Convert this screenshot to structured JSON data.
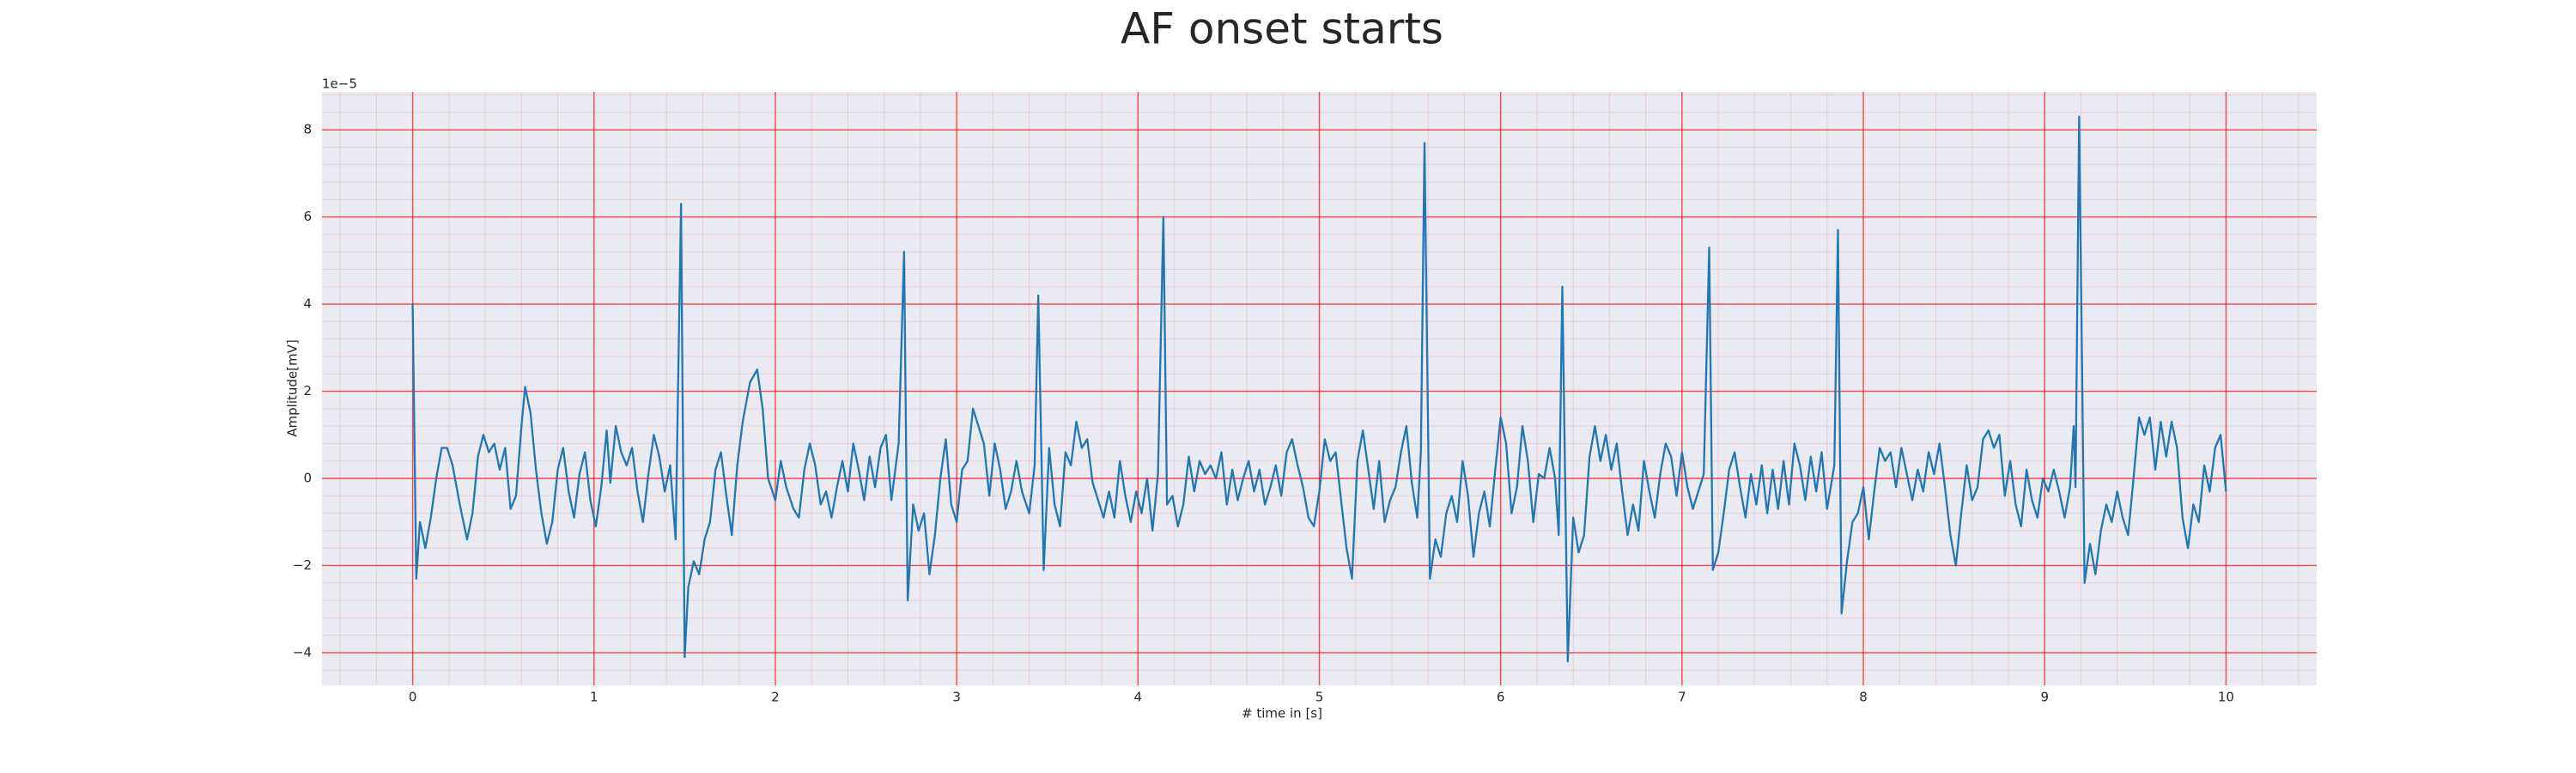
{
  "chart_data": {
    "type": "line",
    "title": "AF onset starts",
    "x_label": "# time in [s]",
    "y_label": "Amplitude[mV]",
    "y_offset_label": "1e−5",
    "color": "#1f77b4",
    "background": "#eaeaf2",
    "grid": true,
    "grid_color": "#ff0000",
    "xlim": [
      -0.5,
      10.5
    ],
    "ylim": [
      -4.75,
      8.87
    ],
    "xticks": [
      0,
      1,
      2,
      3,
      4,
      5,
      6,
      7,
      8,
      9,
      10
    ],
    "yticks": [
      {
        "value": -4,
        "label": "−4"
      },
      {
        "value": -2,
        "label": "−2"
      },
      0,
      2,
      4,
      6,
      8
    ],
    "x": [
      0.0,
      0.02,
      0.04,
      0.07,
      0.1,
      0.13,
      0.16,
      0.19,
      0.22,
      0.26,
      0.3,
      0.33,
      0.36,
      0.39,
      0.42,
      0.45,
      0.48,
      0.51,
      0.54,
      0.57,
      0.6,
      0.62,
      0.65,
      0.68,
      0.71,
      0.74,
      0.77,
      0.8,
      0.83,
      0.86,
      0.89,
      0.92,
      0.95,
      0.98,
      1.01,
      1.04,
      1.07,
      1.09,
      1.12,
      1.15,
      1.18,
      1.21,
      1.24,
      1.27,
      1.3,
      1.33,
      1.36,
      1.39,
      1.42,
      1.45,
      1.48,
      1.5,
      1.52,
      1.55,
      1.58,
      1.61,
      1.64,
      1.67,
      1.7,
      1.73,
      1.76,
      1.79,
      1.82,
      1.86,
      1.9,
      1.93,
      1.96,
      2.0,
      2.03,
      2.06,
      2.1,
      2.13,
      2.16,
      2.19,
      2.22,
      2.25,
      2.28,
      2.31,
      2.34,
      2.37,
      2.4,
      2.43,
      2.46,
      2.49,
      2.52,
      2.55,
      2.58,
      2.61,
      2.64,
      2.68,
      2.71,
      2.73,
      2.76,
      2.79,
      2.82,
      2.85,
      2.88,
      2.91,
      2.94,
      2.97,
      3.0,
      3.03,
      3.06,
      3.09,
      3.12,
      3.15,
      3.18,
      3.21,
      3.24,
      3.27,
      3.3,
      3.33,
      3.36,
      3.4,
      3.43,
      3.45,
      3.48,
      3.51,
      3.54,
      3.57,
      3.6,
      3.63,
      3.66,
      3.69,
      3.72,
      3.75,
      3.78,
      3.81,
      3.84,
      3.87,
      3.9,
      3.93,
      3.96,
      3.99,
      4.02,
      4.05,
      4.08,
      4.11,
      4.14,
      4.16,
      4.19,
      4.22,
      4.25,
      4.28,
      4.31,
      4.34,
      4.37,
      4.4,
      4.43,
      4.46,
      4.49,
      4.52,
      4.55,
      4.58,
      4.61,
      4.64,
      4.67,
      4.7,
      4.73,
      4.76,
      4.79,
      4.82,
      4.85,
      4.88,
      4.91,
      4.94,
      4.97,
      5.0,
      5.03,
      5.06,
      5.09,
      5.12,
      5.15,
      5.18,
      5.21,
      5.24,
      5.27,
      5.3,
      5.33,
      5.36,
      5.39,
      5.42,
      5.45,
      5.48,
      5.51,
      5.54,
      5.56,
      5.58,
      5.61,
      5.64,
      5.67,
      5.7,
      5.73,
      5.76,
      5.79,
      5.82,
      5.85,
      5.88,
      5.91,
      5.94,
      5.97,
      6.0,
      6.03,
      6.06,
      6.09,
      6.12,
      6.15,
      6.18,
      6.21,
      6.24,
      6.27,
      6.3,
      6.32,
      6.34,
      6.37,
      6.4,
      6.43,
      6.46,
      6.49,
      6.52,
      6.55,
      6.58,
      6.61,
      6.64,
      6.67,
      6.7,
      6.73,
      6.76,
      6.79,
      6.82,
      6.85,
      6.88,
      6.91,
      6.94,
      6.97,
      7.0,
      7.03,
      7.06,
      7.09,
      7.12,
      7.15,
      7.17,
      7.2,
      7.23,
      7.26,
      7.29,
      7.32,
      7.35,
      7.38,
      7.41,
      7.44,
      7.47,
      7.5,
      7.53,
      7.56,
      7.59,
      7.62,
      7.65,
      7.68,
      7.71,
      7.74,
      7.77,
      7.8,
      7.84,
      7.86,
      7.88,
      7.91,
      7.94,
      7.97,
      8.0,
      8.03,
      8.06,
      8.09,
      8.12,
      8.15,
      8.18,
      8.21,
      8.24,
      8.27,
      8.3,
      8.33,
      8.36,
      8.39,
      8.42,
      8.45,
      8.48,
      8.51,
      8.54,
      8.57,
      8.6,
      8.63,
      8.66,
      8.69,
      8.72,
      8.75,
      8.78,
      8.81,
      8.84,
      8.87,
      8.9,
      8.93,
      8.96,
      8.99,
      9.02,
      9.05,
      9.08,
      9.11,
      9.14,
      9.16,
      9.17,
      9.19,
      9.22,
      9.25,
      9.28,
      9.31,
      9.34,
      9.37,
      9.4,
      9.43,
      9.46,
      9.49,
      9.52,
      9.55,
      9.58,
      9.61,
      9.64,
      9.67,
      9.7,
      9.73,
      9.76,
      9.79,
      9.82,
      9.85,
      9.88,
      9.91,
      9.94,
      9.97,
      10.0
    ],
    "values": [
      4.0,
      -2.3,
      -1.0,
      -1.6,
      -0.9,
      0.0,
      0.7,
      0.7,
      0.3,
      -0.6,
      -1.4,
      -0.8,
      0.5,
      1.0,
      0.6,
      0.8,
      0.2,
      0.7,
      -0.7,
      -0.4,
      1.2,
      2.1,
      1.5,
      0.2,
      -0.8,
      -1.5,
      -1.0,
      0.2,
      0.7,
      -0.3,
      -0.9,
      0.1,
      0.6,
      -0.5,
      -1.1,
      -0.2,
      1.1,
      -0.1,
      1.2,
      0.6,
      0.3,
      0.7,
      -0.3,
      -1.0,
      0.1,
      1.0,
      0.5,
      -0.3,
      0.3,
      -1.4,
      6.3,
      -4.1,
      -2.5,
      -1.9,
      -2.2,
      -1.4,
      -1.0,
      0.2,
      0.6,
      -0.4,
      -1.3,
      0.3,
      1.3,
      2.2,
      2.5,
      1.6,
      0.0,
      -0.5,
      0.4,
      -0.2,
      -0.7,
      -0.9,
      0.2,
      0.8,
      0.3,
      -0.6,
      -0.3,
      -0.9,
      -0.2,
      0.4,
      -0.3,
      0.8,
      0.2,
      -0.5,
      0.5,
      -0.2,
      0.7,
      1.0,
      -0.5,
      0.8,
      5.2,
      -2.8,
      -0.6,
      -1.2,
      -0.8,
      -2.2,
      -1.3,
      0.0,
      0.9,
      -0.6,
      -1.0,
      0.2,
      0.4,
      1.6,
      1.2,
      0.8,
      -0.4,
      0.8,
      0.2,
      -0.7,
      -0.3,
      0.4,
      -0.3,
      -0.8,
      0.3,
      4.2,
      -2.1,
      0.7,
      -0.6,
      -1.1,
      0.6,
      0.3,
      1.3,
      0.7,
      0.9,
      -0.1,
      -0.5,
      -0.9,
      -0.3,
      -0.9,
      0.4,
      -0.4,
      -1.0,
      -0.3,
      -0.8,
      0.0,
      -1.2,
      0.1,
      6.0,
      -0.6,
      -0.4,
      -1.1,
      -0.6,
      0.5,
      -0.3,
      0.4,
      0.1,
      0.3,
      0.0,
      0.6,
      -0.6,
      0.2,
      -0.5,
      0.0,
      0.4,
      -0.3,
      0.2,
      -0.6,
      -0.2,
      0.3,
      -0.4,
      0.6,
      0.9,
      0.3,
      -0.2,
      -0.9,
      -1.1,
      -0.3,
      0.9,
      0.4,
      0.6,
      -0.5,
      -1.6,
      -2.3,
      0.4,
      1.1,
      0.2,
      -0.7,
      0.4,
      -1.0,
      -0.5,
      -0.2,
      0.6,
      1.2,
      -0.1,
      -0.9,
      0.6,
      7.7,
      -2.3,
      -1.4,
      -1.8,
      -0.8,
      -0.4,
      -1.0,
      0.4,
      -0.4,
      -1.8,
      -0.8,
      -0.3,
      -1.1,
      0.2,
      1.4,
      0.8,
      -0.8,
      -0.2,
      1.2,
      0.4,
      -1.0,
      0.1,
      0.0,
      0.7,
      0.0,
      -1.3,
      4.4,
      -4.2,
      -0.9,
      -1.7,
      -1.3,
      0.5,
      1.2,
      0.4,
      1.0,
      0.2,
      0.8,
      -0.3,
      -1.3,
      -0.6,
      -1.2,
      0.4,
      -0.3,
      -0.9,
      0.1,
      0.8,
      0.5,
      -0.4,
      0.6,
      -0.2,
      -0.7,
      -0.3,
      0.1,
      5.3,
      -2.1,
      -1.7,
      -0.8,
      0.2,
      0.6,
      -0.2,
      -0.9,
      0.1,
      -0.6,
      0.3,
      -0.8,
      0.2,
      -0.7,
      0.4,
      -0.6,
      0.8,
      0.3,
      -0.5,
      0.5,
      -0.3,
      0.6,
      -0.7,
      0.3,
      5.7,
      -3.1,
      -1.9,
      -1.0,
      -0.8,
      -0.2,
      -1.4,
      -0.3,
      0.7,
      0.4,
      0.6,
      -0.2,
      0.7,
      0.1,
      -0.5,
      0.2,
      -0.3,
      0.6,
      0.1,
      0.8,
      -0.2,
      -1.3,
      -2.0,
      -0.8,
      0.3,
      -0.5,
      -0.2,
      0.9,
      1.1,
      0.7,
      1.0,
      -0.4,
      0.4,
      -0.6,
      -1.1,
      0.2,
      -0.5,
      -0.9,
      0.0,
      -0.3,
      0.2,
      -0.3,
      -0.9,
      -0.2,
      1.2,
      -0.2,
      8.3,
      -2.4,
      -1.5,
      -2.2,
      -1.2,
      -0.6,
      -1.0,
      -0.3,
      -0.9,
      -1.3,
      0.0,
      1.4,
      1.0,
      1.4,
      0.2,
      1.3,
      0.5,
      1.3,
      0.7,
      -0.9,
      -1.6,
      -0.6,
      -1.0,
      0.3,
      -0.3,
      0.7,
      1.0,
      -0.3
    ]
  }
}
